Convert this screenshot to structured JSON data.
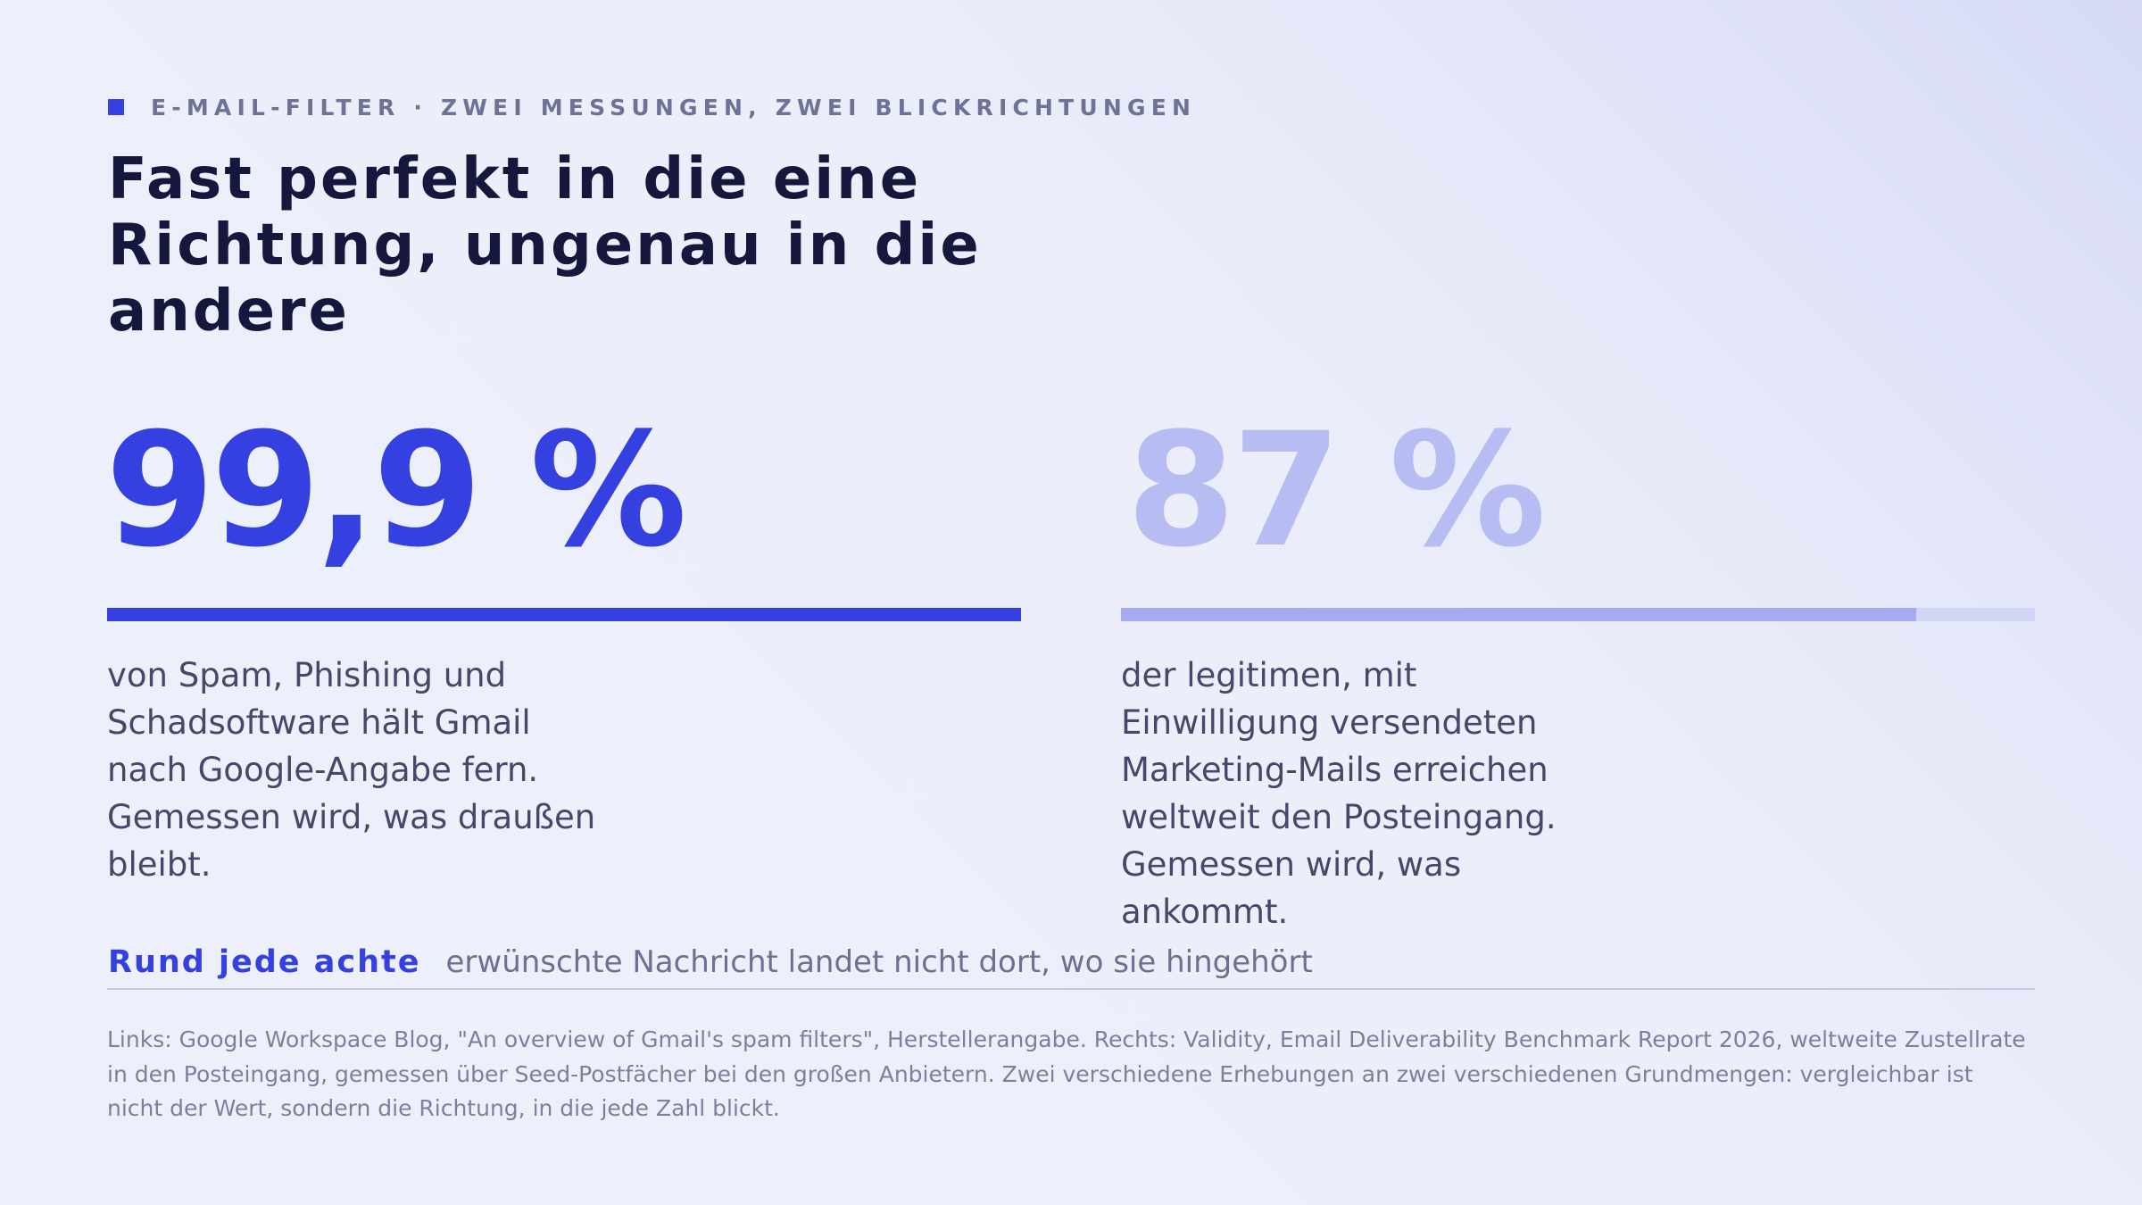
{
  "kicker": "E-MAIL-FILTER · ZWEI MESSUNGEN, ZWEI BLICKRICHTUNGEN",
  "headline": "Fast perfekt in die eine Richtung, ungenau in die andere",
  "left": {
    "value": "99,9 %",
    "bar_fraction": 1.0,
    "description": "von Spam, Phishing und Schadsoftware hält Gmail nach Google-Angabe fern. Gemessen wird, was draußen bleibt."
  },
  "right": {
    "value": "87 %",
    "bar_fraction": 0.87,
    "description": "der legitimen, mit Einwilligung versendeten Marketing-Mails erreichen weltweit den Posteingang. Gemessen wird, was ankommt."
  },
  "takeaway": {
    "emphasis": "Rund jede achte",
    "rest": "erwünschte Nachricht landet nicht dort, wo sie hingehört"
  },
  "source": "Links: Google Workspace Blog, \"An overview of Gmail's spam filters\", Herstellerangabe. Rechts: Validity, Email Deliverability Benchmark Report 2026, weltweite Zustellrate in den Posteingang, gemessen über Seed-Postfächer bei den großen Anbietern. Zwei verschiedene Erhebungen an zwei verschiedenen Grundmengen: vergleichbar ist nicht der Wert, sondern die Richtung, in die jede Zahl blickt.",
  "colors": {
    "accent": "#3441e0",
    "accent_light": "#b7bcf3",
    "bar_light": "#a5abee",
    "track_light": "#d1d5f6",
    "text_dark": "#15173c",
    "text_body": "#46486a",
    "text_muted": "#7d809d"
  }
}
